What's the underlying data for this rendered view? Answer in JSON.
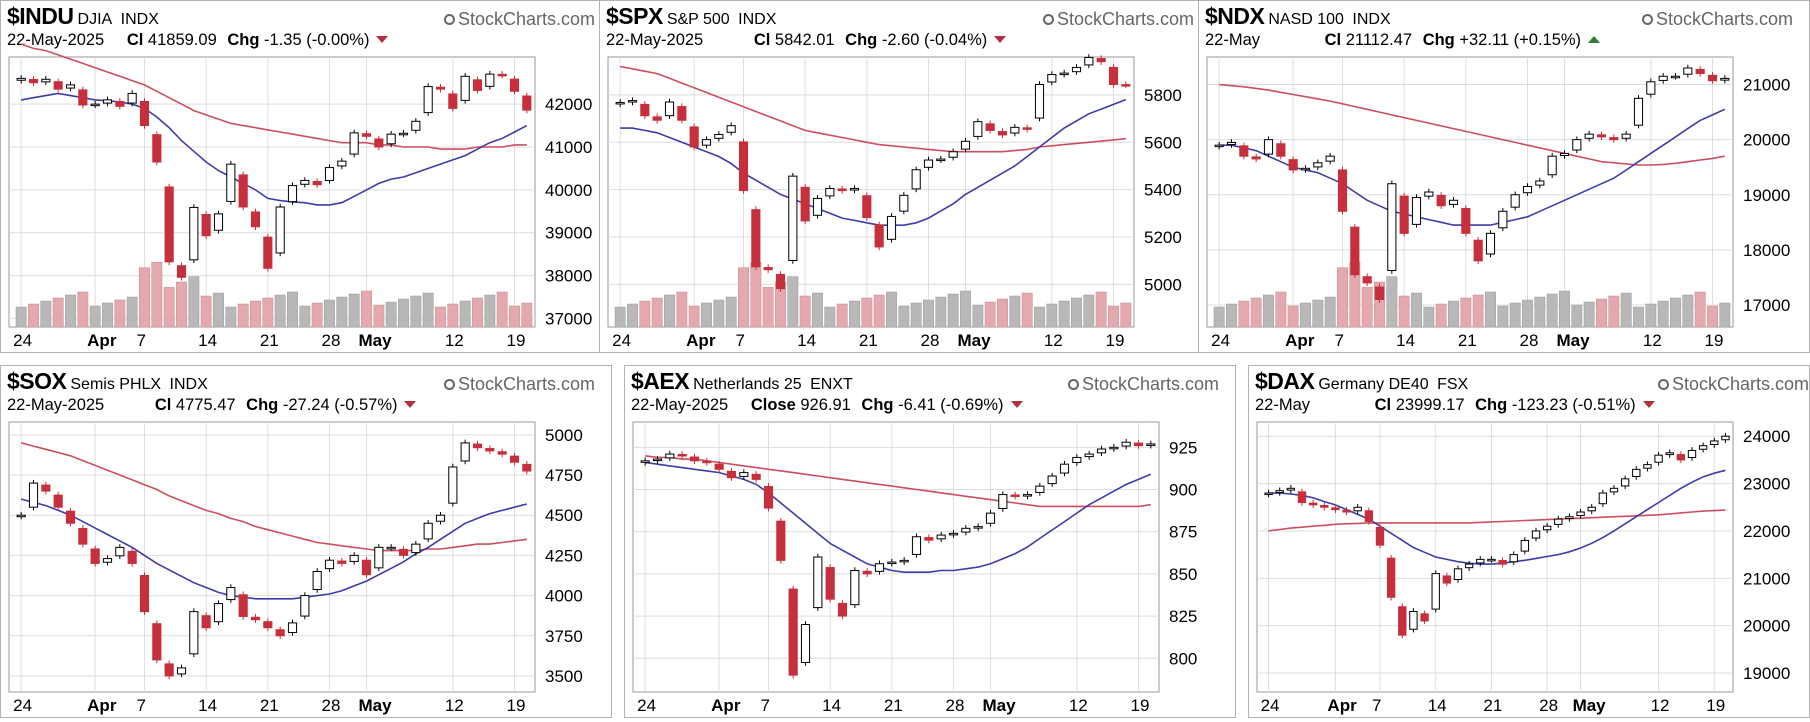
{
  "watermark": "StockCharts.com",
  "colors": {
    "up": "#ffffff",
    "down": "#c62f3c",
    "ma50": "#cc4f5e",
    "ma20": "#3d3daa",
    "vol_up": "#b8b8b8",
    "vol_down": "#e3a9ae",
    "grid": "#dedede"
  },
  "x_ticks": [
    {
      "label": "24",
      "bold": false,
      "date": "2025-03-24"
    },
    {
      "label": "Apr",
      "bold": true,
      "date": "2025-04-01"
    },
    {
      "label": "7",
      "bold": false,
      "date": "2025-04-07"
    },
    {
      "label": "14",
      "bold": false,
      "date": "2025-04-14"
    },
    {
      "label": "21",
      "bold": false,
      "date": "2025-04-21"
    },
    {
      "label": "28",
      "bold": false,
      "date": "2025-04-28"
    },
    {
      "label": "May",
      "bold": true,
      "date": "2025-05-01"
    },
    {
      "label": "12",
      "bold": false,
      "date": "2025-05-12"
    },
    {
      "label": "19",
      "bold": false,
      "date": "2025-05-19"
    }
  ],
  "chart_data": [
    {
      "type": "candlestick",
      "symbol": "$INDU",
      "name": "DJIA",
      "exchange": "INDX",
      "date": "22-May-2025",
      "price_label": "Cl",
      "price": "41859.09",
      "chg": "-1.35 (-0.00%)",
      "direction": "down",
      "y_ticks": [
        42000,
        41000,
        40000,
        39000,
        38000,
        37000
      ],
      "ylim": [
        36800,
        43100
      ],
      "volume": true,
      "closes": [
        42600,
        42500,
        42580,
        42350,
        42450,
        41980,
        42000,
        42100,
        41950,
        42250,
        41500,
        40650,
        38320,
        37960,
        39590,
        38930,
        39440,
        40600,
        39600,
        39140,
        38170,
        39600,
        40100,
        40220,
        40120,
        40520,
        40670,
        41330,
        41250,
        41000,
        41300,
        41320,
        41600,
        42410,
        42350,
        41900,
        42650,
        42320,
        42700,
        42680,
        42300,
        41860
      ],
      "ma20": [
        42100,
        42150,
        42200,
        42250,
        42200,
        42150,
        42100,
        42080,
        42050,
        42000,
        41900,
        41700,
        41450,
        41150,
        40900,
        40650,
        40450,
        40300,
        40150,
        40000,
        39800,
        39750,
        39720,
        39700,
        39650,
        39650,
        39700,
        39850,
        40000,
        40150,
        40250,
        40300,
        40400,
        40500,
        40600,
        40700,
        40800,
        40950,
        41100,
        41200,
        41350,
        41500
      ],
      "ma50": [
        43400,
        43300,
        43250,
        43150,
        43050,
        42950,
        42850,
        42750,
        42650,
        42550,
        42450,
        42300,
        42150,
        42000,
        41850,
        41750,
        41650,
        41550,
        41500,
        41450,
        41400,
        41350,
        41300,
        41250,
        41200,
        41150,
        41100,
        41100,
        41100,
        41050,
        41050,
        41000,
        41000,
        41000,
        40950,
        40950,
        40950,
        41000,
        41000,
        41000,
        41050,
        41050
      ]
    },
    {
      "type": "candlestick",
      "symbol": "$SPX",
      "name": "S&P 500",
      "exchange": "INDX",
      "date": "22-May-2025",
      "price_label": "Cl",
      "price": "5842.01",
      "chg": "-2.60 (-0.04%)",
      "direction": "down",
      "y_ticks": [
        5800,
        5600,
        5400,
        5200,
        5000
      ],
      "ylim": [
        4820,
        5960
      ],
      "volume": true,
      "closes": [
        5768,
        5776,
        5712,
        5693,
        5770,
        5693,
        5580,
        5611,
        5633,
        5670,
        5396,
        5074,
        5062,
        4982,
        5457,
        5268,
        5363,
        5405,
        5396,
        5405,
        5282,
        5158,
        5287,
        5376,
        5484,
        5525,
        5529,
        5560,
        5604,
        5687,
        5650,
        5631,
        5663,
        5655,
        5844,
        5886,
        5892,
        5916,
        5958,
        5940,
        5844,
        5842
      ],
      "ma20": [
        5660,
        5660,
        5650,
        5640,
        5620,
        5600,
        5580,
        5560,
        5540,
        5510,
        5470,
        5440,
        5410,
        5380,
        5360,
        5340,
        5320,
        5300,
        5280,
        5270,
        5260,
        5250,
        5250,
        5250,
        5260,
        5280,
        5310,
        5340,
        5380,
        5410,
        5440,
        5470,
        5500,
        5540,
        5580,
        5620,
        5660,
        5690,
        5720,
        5740,
        5760,
        5780
      ],
      "ma50": [
        5920,
        5910,
        5900,
        5890,
        5870,
        5850,
        5830,
        5810,
        5790,
        5770,
        5750,
        5730,
        5710,
        5690,
        5670,
        5650,
        5640,
        5630,
        5620,
        5610,
        5600,
        5590,
        5585,
        5580,
        5575,
        5570,
        5565,
        5560,
        5560,
        5560,
        5560,
        5560,
        5565,
        5570,
        5580,
        5585,
        5590,
        5595,
        5600,
        5605,
        5610,
        5615
      ]
    },
    {
      "type": "candlestick",
      "symbol": "$NDX",
      "name": "NASD 100",
      "exchange": "INDX",
      "date": "22-May",
      "price_label": "Cl",
      "price": "21112.47",
      "chg": "+32.11 (+0.15%)",
      "direction": "up",
      "y_ticks": [
        21000,
        20000,
        19000,
        18000,
        17000
      ],
      "ylim": [
        16600,
        21500
      ],
      "volume": true,
      "closes": [
        19900,
        19950,
        19700,
        19650,
        20000,
        19700,
        19450,
        19480,
        19580,
        19700,
        18700,
        17550,
        17400,
        17100,
        19200,
        18300,
        18950,
        19050,
        18800,
        18900,
        18300,
        17800,
        18300,
        18700,
        19000,
        19150,
        19250,
        19700,
        19750,
        20000,
        20100,
        20050,
        20000,
        20100,
        20750,
        21050,
        21150,
        21150,
        21300,
        21200,
        21070,
        21112
      ],
      "ma20": [
        19900,
        19900,
        19850,
        19800,
        19700,
        19600,
        19500,
        19450,
        19400,
        19300,
        19200,
        19050,
        18900,
        18800,
        18700,
        18650,
        18600,
        18550,
        18500,
        18450,
        18450,
        18450,
        18450,
        18500,
        18550,
        18600,
        18700,
        18800,
        18900,
        19000,
        19100,
        19200,
        19300,
        19450,
        19600,
        19750,
        19900,
        20050,
        20200,
        20350,
        20450,
        20550
      ],
      "ma50": [
        21000,
        20980,
        20960,
        20930,
        20900,
        20860,
        20820,
        20780,
        20740,
        20700,
        20650,
        20600,
        20550,
        20500,
        20450,
        20400,
        20350,
        20300,
        20250,
        20200,
        20150,
        20100,
        20050,
        20000,
        19950,
        19900,
        19850,
        19800,
        19750,
        19700,
        19650,
        19600,
        19580,
        19560,
        19540,
        19540,
        19550,
        19570,
        19600,
        19630,
        19660,
        19700
      ]
    },
    {
      "type": "candlestick",
      "symbol": "$SOX",
      "name": "Semis PHLX",
      "exchange": "INDX",
      "date": "22-May-2025",
      "price_label": "Cl",
      "price": "4775.47",
      "chg": "-27.24 (-0.57%)",
      "direction": "down",
      "y_ticks": [
        5000,
        4750,
        4500,
        4250,
        4000,
        3750,
        3500
      ],
      "ylim": [
        3400,
        5080
      ],
      "volume": false,
      "closes": [
        4500,
        4700,
        4650,
        4550,
        4450,
        4320,
        4200,
        4230,
        4300,
        4200,
        3900,
        3600,
        3500,
        3550,
        3900,
        3800,
        3950,
        4050,
        3870,
        3850,
        3800,
        3750,
        3830,
        4000,
        4150,
        4220,
        4200,
        4250,
        4130,
        4300,
        4300,
        4250,
        4320,
        4450,
        4500,
        4800,
        4950,
        4920,
        4900,
        4880,
        4830,
        4775
      ],
      "ma20": [
        4600,
        4580,
        4560,
        4530,
        4500,
        4460,
        4420,
        4380,
        4340,
        4300,
        4250,
        4200,
        4160,
        4120,
        4080,
        4050,
        4020,
        4000,
        3990,
        3980,
        3980,
        3980,
        3980,
        3990,
        4000,
        4010,
        4030,
        4060,
        4090,
        4130,
        4170,
        4210,
        4260,
        4300,
        4350,
        4400,
        4450,
        4480,
        4510,
        4530,
        4550,
        4570
      ],
      "ma50": [
        4950,
        4930,
        4910,
        4890,
        4870,
        4840,
        4810,
        4780,
        4750,
        4720,
        4690,
        4660,
        4620,
        4590,
        4560,
        4530,
        4510,
        4480,
        4460,
        4430,
        4410,
        4390,
        4370,
        4350,
        4330,
        4320,
        4310,
        4300,
        4290,
        4280,
        4280,
        4280,
        4280,
        4290,
        4290,
        4300,
        4310,
        4320,
        4320,
        4330,
        4340,
        4350
      ]
    },
    {
      "type": "candlestick",
      "symbol": "$AEX",
      "name": "Netherlands 25",
      "exchange": "ENXT",
      "date": "22-May-2025",
      "price_label": "Close",
      "price": "926.91",
      "chg": "-6.41 (-0.69%)",
      "direction": "down",
      "y_ticks": [
        925,
        900,
        875,
        850,
        825,
        800
      ],
      "ylim": [
        780,
        940
      ],
      "volume": false,
      "closes": [
        917,
        918,
        921,
        920,
        917,
        916,
        912,
        907,
        910,
        906,
        889,
        858,
        790,
        820,
        860,
        835,
        825,
        852,
        850,
        856,
        857,
        858,
        872,
        870,
        873,
        874,
        877,
        878,
        886,
        897,
        896,
        897,
        902,
        908,
        915,
        919,
        921,
        924,
        925,
        928,
        926,
        927
      ],
      "ma20": [
        916,
        915,
        914,
        913,
        912,
        911,
        910,
        908,
        906,
        903,
        898,
        892,
        886,
        880,
        874,
        868,
        864,
        860,
        856,
        854,
        852,
        851,
        851,
        851,
        852,
        852,
        853,
        854,
        856,
        859,
        862,
        866,
        871,
        876,
        881,
        886,
        891,
        895,
        899,
        903,
        906,
        909
      ],
      "ma50": [
        920,
        919,
        919,
        918,
        918,
        917,
        916,
        915,
        914,
        913,
        912,
        911,
        910,
        909,
        908,
        907,
        906,
        905,
        904,
        903,
        902,
        901,
        900,
        899,
        898,
        897,
        896,
        895,
        894,
        893,
        892,
        891,
        890,
        890,
        890,
        890,
        890,
        890,
        890,
        890,
        890,
        891
      ]
    },
    {
      "type": "candlestick",
      "symbol": "$DAX",
      "name": "Germany DE40",
      "exchange": "FSX",
      "date": "22-May",
      "price_label": "Cl",
      "price": "23999.17",
      "chg": "-123.23 (-0.51%)",
      "direction": "down",
      "y_ticks": [
        24000,
        23000,
        22000,
        21000,
        20000,
        19000
      ],
      "ylim": [
        18600,
        24300
      ],
      "volume": false,
      "closes": [
        22800,
        22850,
        22900,
        22600,
        22550,
        22500,
        22450,
        22400,
        22500,
        22200,
        21700,
        20600,
        19800,
        20300,
        20100,
        21100,
        20900,
        21200,
        21300,
        21400,
        21400,
        21300,
        21500,
        21800,
        22000,
        22100,
        22250,
        22300,
        22400,
        22500,
        22800,
        22900,
        23100,
        23300,
        23400,
        23600,
        23650,
        23500,
        23700,
        23800,
        23900,
        24000
      ],
      "ma20": [
        22800,
        22800,
        22780,
        22750,
        22700,
        22620,
        22550,
        22450,
        22350,
        22250,
        22100,
        21950,
        21800,
        21650,
        21550,
        21450,
        21400,
        21350,
        21320,
        21300,
        21300,
        21320,
        21350,
        21380,
        21420,
        21460,
        21500,
        21560,
        21640,
        21740,
        21860,
        22000,
        22150,
        22300,
        22450,
        22600,
        22750,
        22900,
        23030,
        23140,
        23220,
        23280
      ],
      "ma50": [
        22000,
        22030,
        22060,
        22080,
        22100,
        22120,
        22140,
        22150,
        22160,
        22170,
        22170,
        22170,
        22170,
        22170,
        22170,
        22170,
        22170,
        22170,
        22170,
        22180,
        22190,
        22200,
        22210,
        22220,
        22230,
        22240,
        22250,
        22260,
        22270,
        22280,
        22290,
        22300,
        22310,
        22320,
        22330,
        22340,
        22360,
        22380,
        22400,
        22420,
        22430,
        22440
      ]
    }
  ]
}
